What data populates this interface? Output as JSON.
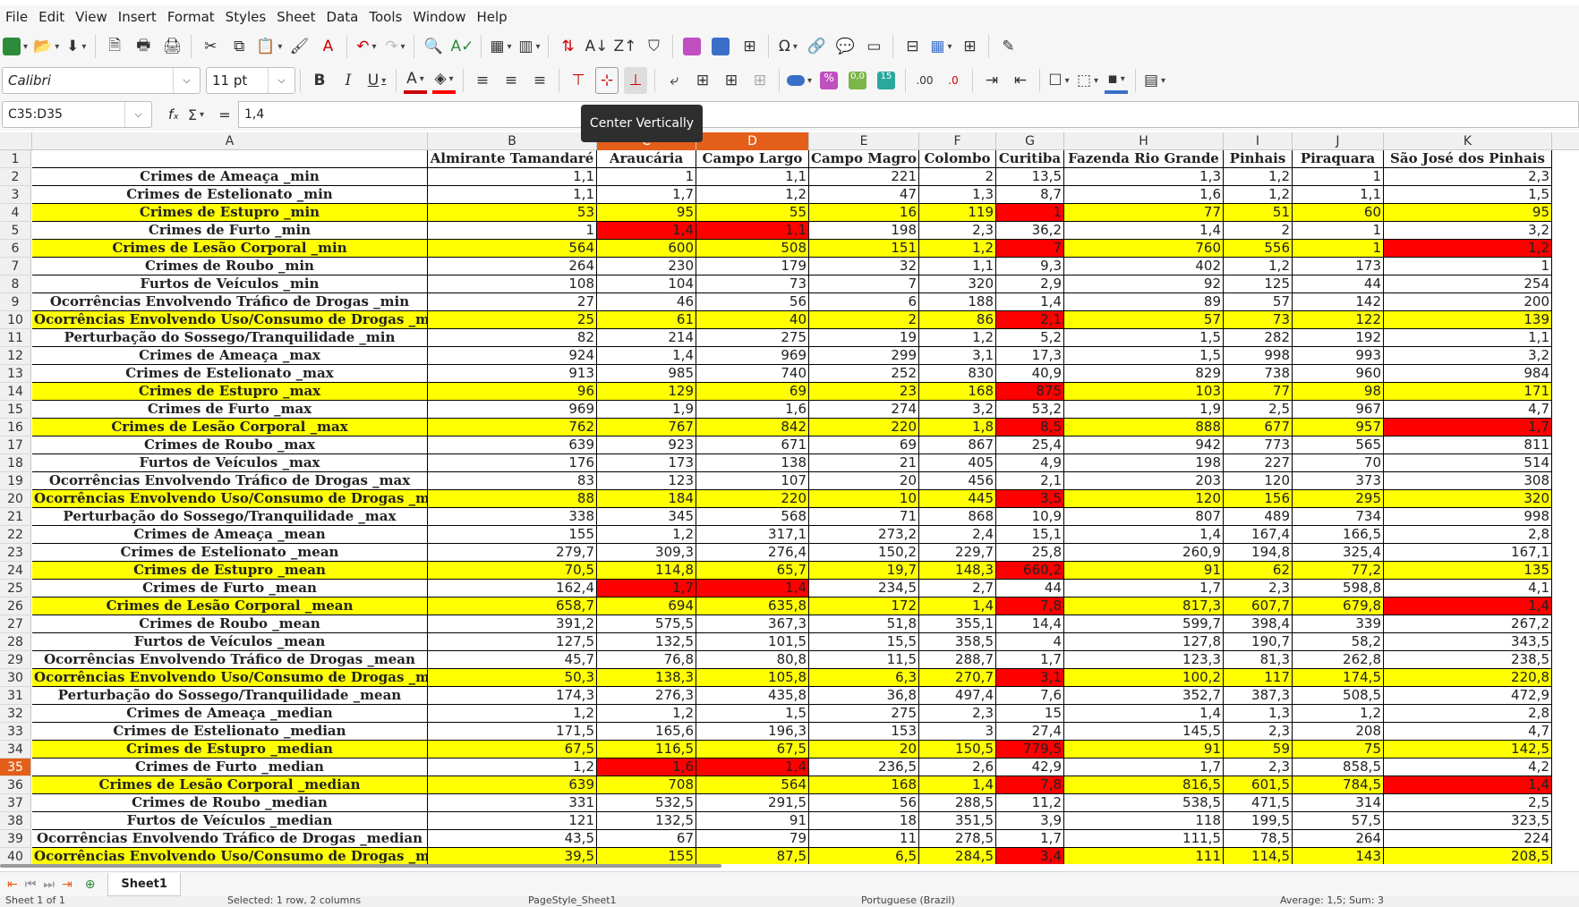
{
  "menu": [
    "File",
    "Edit",
    "View",
    "Insert",
    "Format",
    "Styles",
    "Sheet",
    "Data",
    "Tools",
    "Window",
    "Help"
  ],
  "font": {
    "name": "Calibri",
    "size": "11 pt"
  },
  "formula": {
    "name_box": "C35:D35",
    "value": "1,4"
  },
  "tooltip": "Center Vertically",
  "colors": {
    "accent": "#e45f1a",
    "highlight_yellow": "#ffff00",
    "highlight_red": "#ff0000"
  },
  "columns": [
    "A",
    "B",
    "C",
    "D",
    "E",
    "F",
    "G",
    "H",
    "I",
    "J",
    "K"
  ],
  "selected_columns": [
    "C",
    "D"
  ],
  "selected_row": 35,
  "header_row": [
    "",
    "Almirante Tamandaré",
    "Araucária",
    "Campo Largo",
    "Campo Magro",
    "Colombo",
    "Curitiba",
    "Fazenda Rio Grande",
    "Pinhais",
    "Piraquara",
    "São José dos Pinhais"
  ],
  "rows": [
    {
      "n": 2,
      "label": "Crimes de Ameaça _min",
      "values": [
        "1,1",
        "1",
        "1,1",
        "221",
        "2",
        "13,5",
        "1,3",
        "1,2",
        "1",
        "2,3"
      ],
      "yellow": false,
      "red": []
    },
    {
      "n": 3,
      "label": "Crimes de Estelionato _min",
      "values": [
        "1,1",
        "1,7",
        "1,2",
        "47",
        "1,3",
        "8,7",
        "1,6",
        "1,2",
        "1,1",
        "1,5"
      ],
      "yellow": false,
      "red": []
    },
    {
      "n": 4,
      "label": "Crimes de Estupro _min",
      "values": [
        "53",
        "95",
        "55",
        "16",
        "119",
        "1",
        "77",
        "51",
        "60",
        "95"
      ],
      "yellow": true,
      "red": [
        5
      ]
    },
    {
      "n": 5,
      "label": "Crimes de Furto _min",
      "values": [
        "1",
        "1,4",
        "1,1",
        "198",
        "2,3",
        "36,2",
        "1,4",
        "2",
        "1",
        "3,2"
      ],
      "yellow": false,
      "red": [
        1,
        2
      ]
    },
    {
      "n": 6,
      "label": "Crimes de Lesão Corporal _min",
      "values": [
        "564",
        "600",
        "508",
        "151",
        "1,2",
        "7",
        "760",
        "556",
        "1",
        "1,2"
      ],
      "yellow": true,
      "red": [
        5,
        9
      ]
    },
    {
      "n": 7,
      "label": "Crimes de Roubo _min",
      "values": [
        "264",
        "230",
        "179",
        "32",
        "1,1",
        "9,3",
        "402",
        "1,2",
        "173",
        "1"
      ],
      "yellow": false,
      "red": []
    },
    {
      "n": 8,
      "label": "Furtos de Veículos _min",
      "values": [
        "108",
        "104",
        "73",
        "7",
        "320",
        "2,9",
        "92",
        "125",
        "44",
        "254"
      ],
      "yellow": false,
      "red": []
    },
    {
      "n": 9,
      "label": "Ocorrências Envolvendo Tráfico de Drogas _min",
      "values": [
        "27",
        "46",
        "56",
        "6",
        "188",
        "1,4",
        "89",
        "57",
        "142",
        "200"
      ],
      "yellow": false,
      "red": []
    },
    {
      "n": 10,
      "label": "Ocorrências Envolvendo Uso/Consumo de Drogas _min",
      "values": [
        "25",
        "61",
        "40",
        "2",
        "86",
        "2,1",
        "57",
        "73",
        "122",
        "139"
      ],
      "yellow": true,
      "red": [
        5
      ]
    },
    {
      "n": 11,
      "label": "Perturbação do Sossego/Tranquilidade _min",
      "values": [
        "82",
        "214",
        "275",
        "19",
        "1,2",
        "5,2",
        "1,5",
        "282",
        "192",
        "1,1"
      ],
      "yellow": false,
      "red": []
    },
    {
      "n": 12,
      "label": "Crimes de Ameaça _max",
      "values": [
        "924",
        "1,4",
        "969",
        "299",
        "3,1",
        "17,3",
        "1,5",
        "998",
        "993",
        "3,2"
      ],
      "yellow": false,
      "red": []
    },
    {
      "n": 13,
      "label": "Crimes de Estelionato _max",
      "values": [
        "913",
        "985",
        "740",
        "252",
        "830",
        "40,9",
        "829",
        "738",
        "960",
        "984"
      ],
      "yellow": false,
      "red": []
    },
    {
      "n": 14,
      "label": "Crimes de Estupro _max",
      "values": [
        "96",
        "129",
        "69",
        "23",
        "168",
        "875",
        "103",
        "77",
        "98",
        "171"
      ],
      "yellow": true,
      "red": [
        5
      ]
    },
    {
      "n": 15,
      "label": "Crimes de Furto _max",
      "values": [
        "969",
        "1,9",
        "1,6",
        "274",
        "3,2",
        "53,2",
        "1,9",
        "2,5",
        "967",
        "4,7"
      ],
      "yellow": false,
      "red": []
    },
    {
      "n": 16,
      "label": "Crimes de Lesão Corporal _max",
      "values": [
        "762",
        "767",
        "842",
        "220",
        "1,8",
        "8,5",
        "888",
        "677",
        "957",
        "1,7"
      ],
      "yellow": true,
      "red": [
        5,
        9
      ]
    },
    {
      "n": 17,
      "label": "Crimes de Roubo _max",
      "values": [
        "639",
        "923",
        "671",
        "69",
        "867",
        "25,4",
        "942",
        "773",
        "565",
        "811"
      ],
      "yellow": false,
      "red": []
    },
    {
      "n": 18,
      "label": "Furtos de Veículos _max",
      "values": [
        "176",
        "173",
        "138",
        "21",
        "405",
        "4,9",
        "198",
        "227",
        "70",
        "514"
      ],
      "yellow": false,
      "red": []
    },
    {
      "n": 19,
      "label": "Ocorrências Envolvendo Tráfico de Drogas _max",
      "values": [
        "83",
        "123",
        "107",
        "20",
        "456",
        "2,1",
        "203",
        "120",
        "373",
        "308"
      ],
      "yellow": false,
      "red": []
    },
    {
      "n": 20,
      "label": "Ocorrências Envolvendo Uso/Consumo de Drogas _max",
      "values": [
        "88",
        "184",
        "220",
        "10",
        "445",
        "3,5",
        "120",
        "156",
        "295",
        "320"
      ],
      "yellow": true,
      "red": [
        5
      ]
    },
    {
      "n": 21,
      "label": "Perturbação do Sossego/Tranquilidade _max",
      "values": [
        "338",
        "345",
        "568",
        "71",
        "868",
        "10,9",
        "807",
        "489",
        "734",
        "998"
      ],
      "yellow": false,
      "red": []
    },
    {
      "n": 22,
      "label": "Crimes de Ameaça _mean",
      "values": [
        "155",
        "1,2",
        "317,1",
        "273,2",
        "2,4",
        "15,1",
        "1,4",
        "167,4",
        "166,5",
        "2,8"
      ],
      "yellow": false,
      "red": []
    },
    {
      "n": 23,
      "label": "Crimes de Estelionato _mean",
      "values": [
        "279,7",
        "309,3",
        "276,4",
        "150,2",
        "229,7",
        "25,8",
        "260,9",
        "194,8",
        "325,4",
        "167,1"
      ],
      "yellow": false,
      "red": []
    },
    {
      "n": 24,
      "label": "Crimes de Estupro _mean",
      "values": [
        "70,5",
        "114,8",
        "65,7",
        "19,7",
        "148,3",
        "660,2",
        "91",
        "62",
        "77,2",
        "135"
      ],
      "yellow": true,
      "red": [
        5
      ]
    },
    {
      "n": 25,
      "label": "Crimes de Furto _mean",
      "values": [
        "162,4",
        "1,7",
        "1,4",
        "234,5",
        "2,7",
        "44",
        "1,7",
        "2,3",
        "598,8",
        "4,1"
      ],
      "yellow": false,
      "red": [
        1,
        2
      ]
    },
    {
      "n": 26,
      "label": "Crimes de Lesão Corporal _mean",
      "values": [
        "658,7",
        "694",
        "635,8",
        "172",
        "1,4",
        "7,8",
        "817,3",
        "607,7",
        "679,8",
        "1,4"
      ],
      "yellow": true,
      "red": [
        5,
        9
      ]
    },
    {
      "n": 27,
      "label": "Crimes de Roubo _mean",
      "values": [
        "391,2",
        "575,5",
        "367,3",
        "51,8",
        "355,1",
        "14,4",
        "599,7",
        "398,4",
        "339",
        "267,2"
      ],
      "yellow": false,
      "red": []
    },
    {
      "n": 28,
      "label": "Furtos de Veículos _mean",
      "values": [
        "127,5",
        "132,5",
        "101,5",
        "15,5",
        "358,5",
        "4",
        "127,8",
        "190,7",
        "58,2",
        "343,5"
      ],
      "yellow": false,
      "red": []
    },
    {
      "n": 29,
      "label": "Ocorrências Envolvendo Tráfico de Drogas _mean",
      "values": [
        "45,7",
        "76,8",
        "80,8",
        "11,5",
        "288,7",
        "1,7",
        "123,3",
        "81,3",
        "262,8",
        "238,5"
      ],
      "yellow": false,
      "red": []
    },
    {
      "n": 30,
      "label": "Ocorrências Envolvendo Uso/Consumo de Drogas _mean",
      "values": [
        "50,3",
        "138,3",
        "105,8",
        "6,3",
        "270,7",
        "3,1",
        "100,2",
        "117",
        "174,5",
        "220,8"
      ],
      "yellow": true,
      "red": [
        5
      ]
    },
    {
      "n": 31,
      "label": "Perturbação do Sossego/Tranquilidade _mean",
      "values": [
        "174,3",
        "276,3",
        "435,8",
        "36,8",
        "497,4",
        "7,6",
        "352,7",
        "387,3",
        "508,5",
        "472,9"
      ],
      "yellow": false,
      "red": []
    },
    {
      "n": 32,
      "label": "Crimes de Ameaça _median",
      "values": [
        "1,2",
        "1,2",
        "1,5",
        "275",
        "2,3",
        "15",
        "1,4",
        "1,3",
        "1,2",
        "2,8"
      ],
      "yellow": false,
      "red": []
    },
    {
      "n": 33,
      "label": "Crimes de Estelionato _median",
      "values": [
        "171,5",
        "165,6",
        "196,3",
        "153",
        "3",
        "27,4",
        "145,5",
        "2,3",
        "208",
        "4,7"
      ],
      "yellow": false,
      "red": []
    },
    {
      "n": 34,
      "label": "Crimes de Estupro _median",
      "values": [
        "67,5",
        "116,5",
        "67,5",
        "20",
        "150,5",
        "779,5",
        "91",
        "59",
        "75",
        "142,5"
      ],
      "yellow": true,
      "red": [
        5
      ]
    },
    {
      "n": 35,
      "label": "Crimes de Furto _median",
      "values": [
        "1,2",
        "1,6",
        "1,4",
        "236,5",
        "2,6",
        "42,9",
        "1,7",
        "2,3",
        "858,5",
        "4,2"
      ],
      "yellow": false,
      "red": [
        1,
        2
      ]
    },
    {
      "n": 36,
      "label": "Crimes de Lesão Corporal _median",
      "values": [
        "639",
        "708",
        "564",
        "168",
        "1,4",
        "7,8",
        "816,5",
        "601,5",
        "784,5",
        "1,4"
      ],
      "yellow": true,
      "red": [
        5,
        9
      ]
    },
    {
      "n": 37,
      "label": "Crimes de Roubo _median",
      "values": [
        "331",
        "532,5",
        "291,5",
        "56",
        "288,5",
        "11,2",
        "538,5",
        "471,5",
        "314",
        "2,5"
      ],
      "yellow": false,
      "red": []
    },
    {
      "n": 38,
      "label": "Furtos de Veículos _median",
      "values": [
        "121",
        "132,5",
        "91",
        "18",
        "351,5",
        "3,9",
        "118",
        "199,5",
        "57,5",
        "323,5"
      ],
      "yellow": false,
      "red": []
    },
    {
      "n": 39,
      "label": "Ocorrências Envolvendo Tráfico de Drogas _median",
      "values": [
        "43,5",
        "67",
        "79",
        "11",
        "278,5",
        "1,7",
        "111,5",
        "78,5",
        "264",
        "224"
      ],
      "yellow": false,
      "red": []
    },
    {
      "n": 40,
      "label": "Ocorrências Envolvendo Uso/Consumo de Drogas _median",
      "values": [
        "39,5",
        "155",
        "87,5",
        "6,5",
        "284,5",
        "3,4",
        "111",
        "114,5",
        "143",
        "208,5"
      ],
      "yellow": true,
      "red": [
        5
      ]
    }
  ],
  "sheet_tab": "Sheet1",
  "status": {
    "sheet": "Sheet 1 of 1",
    "selection": "Selected: 1 row, 2 columns",
    "page_style": "PageStyle_Sheet1",
    "language": "Portuguese (Brazil)",
    "summary": "Average: 1,5; Sum: 3"
  }
}
